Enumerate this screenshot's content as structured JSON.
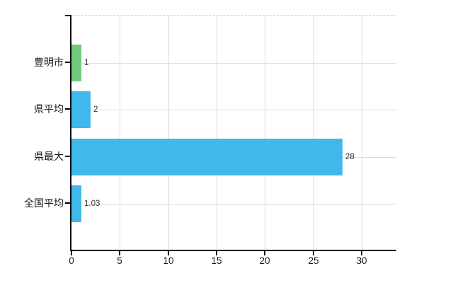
{
  "chart_data": {
    "type": "bar",
    "orientation": "horizontal",
    "title": "",
    "xlabel": "",
    "ylabel": "",
    "categories": [
      "豊明市",
      "県平均",
      "県最大",
      "全国平均"
    ],
    "values": [
      1,
      2,
      28,
      1.03
    ],
    "value_labels": [
      "1",
      "2",
      "28",
      "1.03"
    ],
    "bar_colors": [
      "#6FC97E",
      "#41B8EC",
      "#41B8EC",
      "#41B8EC"
    ],
    "x_ticks": [
      0,
      5,
      10,
      15,
      20,
      25,
      30
    ],
    "x_tick_labels": [
      "0",
      "5",
      "10",
      "15",
      "20",
      "25",
      "30"
    ],
    "xlim": [
      0,
      33.6
    ],
    "grid": true,
    "legend_position": "none"
  },
  "colors": {
    "bar_green": "#6FC97E",
    "bar_blue": "#41B8EC",
    "gridline": "#DCDCDC",
    "plot_top_border": "#CCCCCC",
    "axis": "#000000",
    "value_label_text": "#333333",
    "label_text": "#1A1A1A",
    "background": "#FFFFFF"
  }
}
